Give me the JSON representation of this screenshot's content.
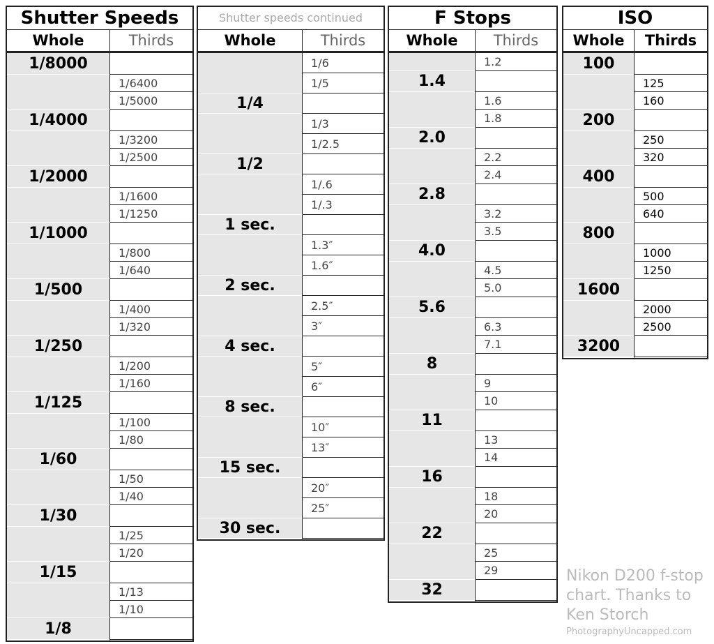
{
  "tables": [
    {
      "title": "Shutter Speeds",
      "headers": [
        "Whole",
        "Thirds"
      ],
      "groups": [
        {
          "whole": "1/8000",
          "thirds": [
            "1/6400",
            "1/5000"
          ]
        },
        {
          "whole": "1/4000",
          "thirds": [
            "1/3200",
            "1/2500"
          ]
        },
        {
          "whole": "1/2000",
          "thirds": [
            "1/1600",
            "1/1250"
          ]
        },
        {
          "whole": "1/1000",
          "thirds": [
            "1/800",
            "1/640"
          ]
        },
        {
          "whole": "1/500",
          "thirds": [
            "1/400",
            "1/320"
          ]
        },
        {
          "whole": "1/250",
          "thirds": [
            "1/200",
            "1/160"
          ]
        },
        {
          "whole": "1/125",
          "thirds": [
            "1/100",
            "1/80"
          ]
        },
        {
          "whole": "1/60",
          "thirds": [
            "1/50",
            "1/40"
          ]
        },
        {
          "whole": "1/30",
          "thirds": [
            "1/25",
            "1/20"
          ]
        },
        {
          "whole": "1/15",
          "thirds": [
            "1/13",
            "1/10"
          ]
        },
        {
          "whole": "1/8",
          "thirds": []
        }
      ]
    },
    {
      "title": "Shutter speeds continued",
      "headers": [
        "Whole",
        "Thirds"
      ],
      "groups": [
        {
          "whole": null,
          "thirds": [
            "1/6",
            "1/5"
          ]
        },
        {
          "whole": "1/4",
          "thirds": [
            "1/3",
            "1/2.5"
          ]
        },
        {
          "whole": "1/2",
          "thirds": [
            "1/.6",
            "1/.3"
          ]
        },
        {
          "whole": "1 sec.",
          "thirds": [
            "1.3″",
            "1.6″"
          ]
        },
        {
          "whole": "2 sec.",
          "thirds": [
            "2.5″",
            "3″"
          ]
        },
        {
          "whole": "4 sec.",
          "thirds": [
            "5″",
            "6″"
          ]
        },
        {
          "whole": "8 sec.",
          "thirds": [
            "10″",
            "13″"
          ]
        },
        {
          "whole": "15 sec.",
          "thirds": [
            "20″",
            "25″"
          ]
        },
        {
          "whole": "30 sec.",
          "thirds": []
        }
      ]
    },
    {
      "title": "F Stops",
      "headers": [
        "Whole",
        "Thirds"
      ],
      "groups": [
        {
          "whole": null,
          "thirds": [
            "1.2"
          ]
        },
        {
          "whole": "1.4",
          "thirds": [
            "1.6",
            "1.8"
          ]
        },
        {
          "whole": "2.0",
          "thirds": [
            "2.2",
            "2.4"
          ]
        },
        {
          "whole": "2.8",
          "thirds": [
            "3.2",
            "3.5"
          ]
        },
        {
          "whole": "4.0",
          "thirds": [
            "4.5",
            "5.0"
          ]
        },
        {
          "whole": "5.6",
          "thirds": [
            "6.3",
            "7.1"
          ]
        },
        {
          "whole": "8",
          "thirds": [
            "9",
            "10"
          ]
        },
        {
          "whole": "11",
          "thirds": [
            "13",
            "14"
          ]
        },
        {
          "whole": "16",
          "thirds": [
            "18",
            "20"
          ]
        },
        {
          "whole": "22",
          "thirds": [
            "25",
            "29"
          ]
        },
        {
          "whole": "32",
          "thirds": []
        }
      ]
    },
    {
      "title": "ISO",
      "headers": [
        "Whole",
        "Thirds"
      ],
      "groups": [
        {
          "whole": "100",
          "thirds": [
            "125",
            "160"
          ]
        },
        {
          "whole": "200",
          "thirds": [
            "250",
            "320"
          ]
        },
        {
          "whole": "400",
          "thirds": [
            "500",
            "640"
          ]
        },
        {
          "whole": "800",
          "thirds": [
            "1000",
            "1250"
          ]
        },
        {
          "whole": "1600",
          "thirds": [
            "2000",
            "2500"
          ]
        },
        {
          "whole": "3200",
          "thirds": []
        }
      ]
    }
  ],
  "note": {
    "text": "Nikon D200 f-stop chart. Thanks to Ken Storch",
    "site": "PhotographyUncapped.com"
  }
}
